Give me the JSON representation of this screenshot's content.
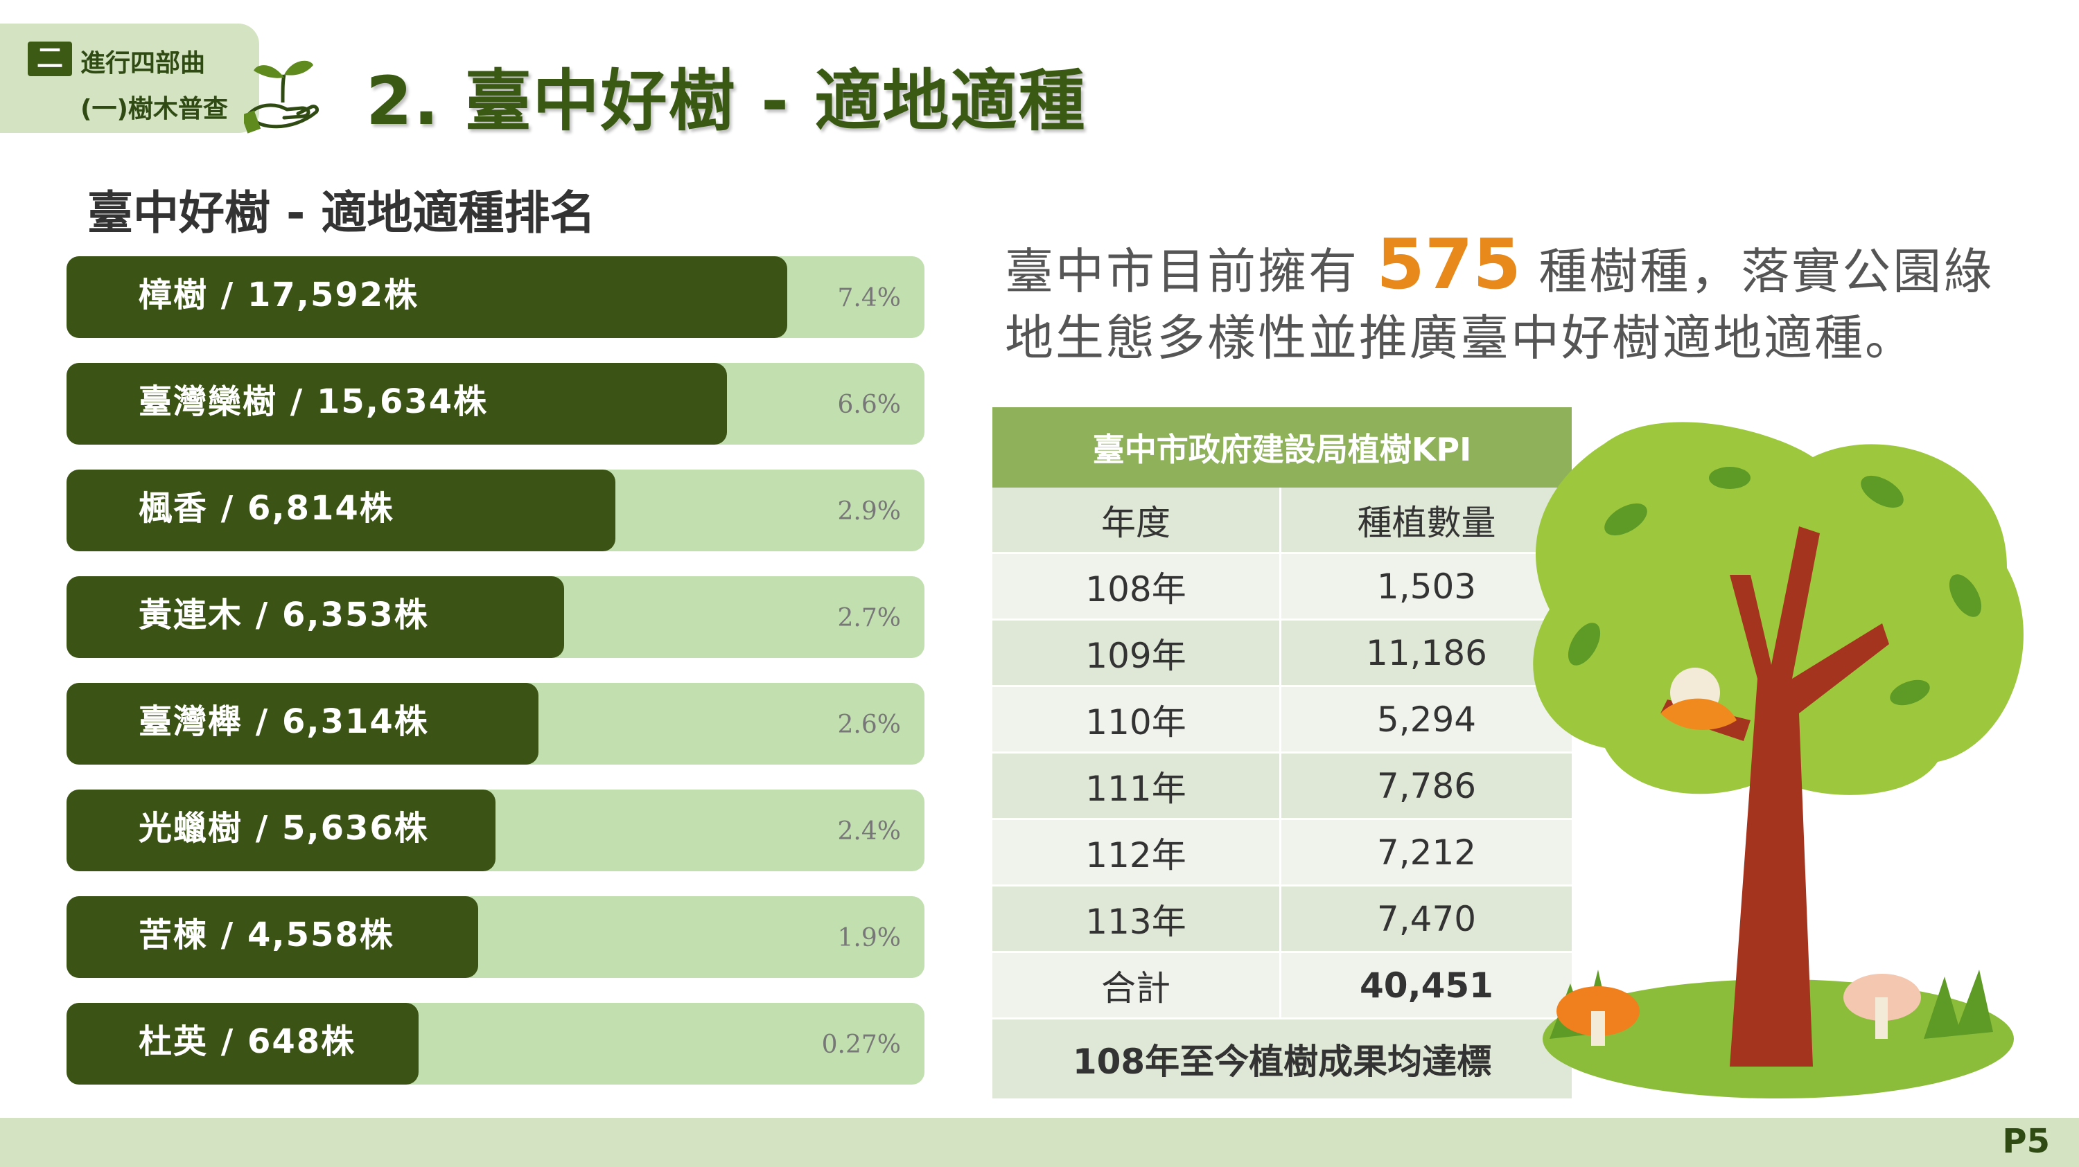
{
  "header": {
    "section_number": "二",
    "section_title": "進行四部曲",
    "section_sub": "(一)樹木普查",
    "page_title": "2. 臺中好樹 - 適地適種"
  },
  "ranking": {
    "title": "臺中好樹 - 適地適種排名",
    "items": [
      {
        "label": "樟樹 / 17,592株",
        "percent": "7.4%",
        "fill": 0.84
      },
      {
        "label": "臺灣欒樹 / 15,634株",
        "percent": "6.6%",
        "fill": 0.77
      },
      {
        "label": "楓香 / 6,814株",
        "percent": "2.9%",
        "fill": 0.64
      },
      {
        "label": "黃連木 / 6,353株",
        "percent": "2.7%",
        "fill": 0.58
      },
      {
        "label": "臺灣櫸 / 6,314株",
        "percent": "2.6%",
        "fill": 0.55
      },
      {
        "label": "光蠟樹 / 5,636株",
        "percent": "2.4%",
        "fill": 0.5
      },
      {
        "label": "苦楝 / 4,558株",
        "percent": "1.9%",
        "fill": 0.48
      },
      {
        "label": "杜英 / 648株",
        "percent": "0.27%",
        "fill": 0.41
      }
    ]
  },
  "intro": {
    "line1_pre": "臺中市目前擁有 ",
    "highlight": "575",
    "line1_post": " 種樹種，落實公園綠",
    "line2": "地生態多樣性並推廣臺中好樹適地適種。"
  },
  "kpi_table": {
    "title": "臺中市政府建設局植樹KPI",
    "col_year": "年度",
    "col_count": "種植數量",
    "rows": [
      {
        "year": "108年",
        "count": "1,503"
      },
      {
        "year": "109年",
        "count": "11,186"
      },
      {
        "year": "110年",
        "count": "5,294"
      },
      {
        "year": "111年",
        "count": "7,786"
      },
      {
        "year": "112年",
        "count": "7,212"
      },
      {
        "year": "113年",
        "count": "7,470"
      }
    ],
    "total_label": "合計",
    "total_value": "40,451",
    "footnote": "108年至今植樹成果均達標"
  },
  "footer": {
    "page": "P5"
  },
  "colors": {
    "dark_green": "#3b5314",
    "light_green": "#c2dfb0",
    "accent_orange": "#e8891c",
    "table_header": "#8fb15a"
  }
}
